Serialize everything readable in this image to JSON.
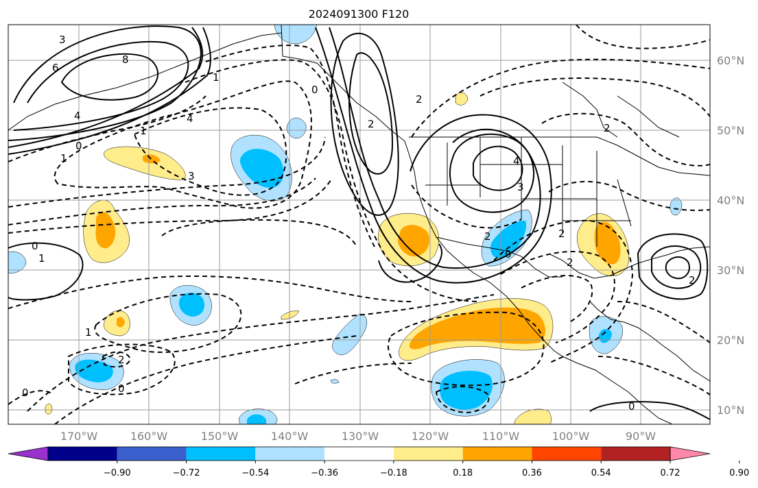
{
  "title": "2024091300 F120",
  "lat_labels": [
    "60°N",
    "50°N",
    "40°N",
    "30°N",
    "20°N",
    "10°N"
  ],
  "lon_labels": [
    "170°W",
    "160°W",
    "150°W",
    "140°W",
    "130°W",
    "120°W",
    "110°W",
    "100°W",
    "90°W"
  ],
  "colorbar": {
    "ticks": [
      "−0.90",
      "−0.72",
      "−0.54",
      "−0.36",
      "−0.18",
      "0.18",
      "0.36",
      "0.54",
      "0.72",
      "0.90"
    ],
    "colors": [
      "#9932cc",
      "#00008b",
      "#3a5fcd",
      "#00bfff",
      "#b0e2ff",
      "#ffffff",
      "#ffec8b",
      "#ffa500",
      "#ff4500",
      "#b22222",
      "#ff88aa"
    ]
  },
  "fill_colors": {
    "light_blue": "#b0e2ff",
    "blue": "#00bfff",
    "light_yellow": "#ffec8b",
    "orange": "#ffa500"
  },
  "contour_labels": [
    "3",
    "6",
    "8",
    "4",
    "1",
    "0",
    "1",
    "0",
    "1",
    "3",
    "4",
    "0",
    "2",
    "4",
    "3",
    "2",
    "2",
    "0",
    "1",
    "2",
    "0",
    "1",
    "2",
    "0",
    "2",
    "2",
    "0",
    "2"
  ]
}
